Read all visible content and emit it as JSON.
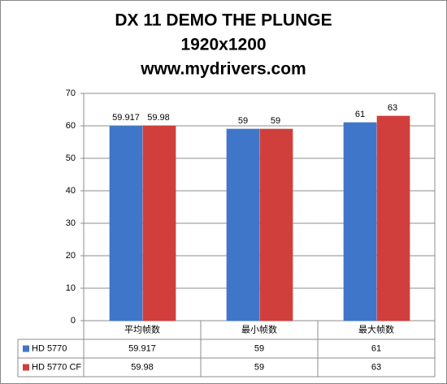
{
  "chart_data": {
    "type": "bar",
    "title": "DX 11 DEMO THE PLUNGE",
    "subtitle": "1920x1200",
    "annotation": "www.mydrivers.com",
    "categories": [
      "平均帧数",
      "最小帧数",
      "最大帧数"
    ],
    "series": [
      {
        "name": "HD 5770",
        "color": "#3f76c9",
        "values": [
          59.917,
          59,
          61
        ]
      },
      {
        "name": "HD 5770 CF",
        "color": "#d03f3c",
        "values": [
          59.98,
          59,
          63
        ]
      }
    ],
    "ylim": [
      0,
      70
    ],
    "yticks": [
      0,
      10,
      20,
      30,
      40,
      50,
      60,
      70
    ],
    "grid": true,
    "data_table": true
  }
}
